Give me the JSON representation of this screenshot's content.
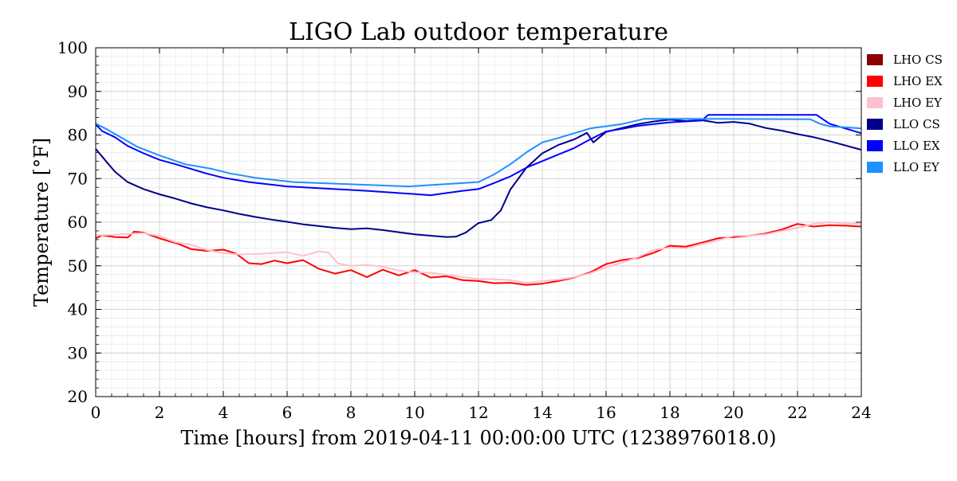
{
  "chart_data": {
    "type": "line",
    "title": "LIGO Lab outdoor temperature",
    "xlabel": "Time [hours] from 2019-04-11 00:00:00 UTC (1238976018.0)",
    "ylabel": "Temperature [°F]",
    "xlim": [
      0,
      24
    ],
    "ylim": [
      20,
      100
    ],
    "x_ticks": [
      "0",
      "2",
      "4",
      "6",
      "8",
      "10",
      "12",
      "14",
      "16",
      "18",
      "20",
      "22",
      "24"
    ],
    "y_ticks": [
      "20",
      "30",
      "40",
      "50",
      "60",
      "70",
      "80",
      "90",
      "100"
    ],
    "grid": true,
    "legend_position": "outside-right",
    "series": [
      {
        "name": "LHO CS",
        "color": "#8b0000",
        "points": []
      },
      {
        "name": "LHO EX",
        "color": "#ff0000",
        "points": [
          [
            0,
            56.3
          ],
          [
            0.2,
            57.0
          ],
          [
            0.6,
            56.6
          ],
          [
            1.0,
            56.5
          ],
          [
            1.2,
            57.8
          ],
          [
            1.5,
            57.6
          ],
          [
            2.0,
            56.3
          ],
          [
            2.6,
            55.0
          ],
          [
            3.0,
            53.8
          ],
          [
            3.5,
            53.4
          ],
          [
            4.0,
            53.7
          ],
          [
            4.4,
            52.8
          ],
          [
            4.8,
            50.6
          ],
          [
            5.2,
            50.4
          ],
          [
            5.6,
            51.2
          ],
          [
            6.0,
            50.6
          ],
          [
            6.5,
            51.3
          ],
          [
            7.0,
            49.3
          ],
          [
            7.5,
            48.2
          ],
          [
            8.0,
            49.0
          ],
          [
            8.5,
            47.4
          ],
          [
            9.0,
            49.1
          ],
          [
            9.5,
            47.8
          ],
          [
            10.0,
            49.0
          ],
          [
            10.5,
            47.3
          ],
          [
            11.0,
            47.6
          ],
          [
            11.5,
            46.7
          ],
          [
            12.0,
            46.5
          ],
          [
            12.5,
            46.0
          ],
          [
            13.0,
            46.1
          ],
          [
            13.5,
            45.6
          ],
          [
            14.0,
            45.9
          ],
          [
            14.5,
            46.5
          ],
          [
            15.0,
            47.3
          ],
          [
            15.5,
            48.5
          ],
          [
            16.0,
            50.4
          ],
          [
            16.5,
            51.3
          ],
          [
            17.0,
            51.8
          ],
          [
            17.5,
            53.0
          ],
          [
            18.0,
            54.6
          ],
          [
            18.5,
            54.4
          ],
          [
            19.0,
            55.3
          ],
          [
            19.5,
            56.3
          ],
          [
            20.0,
            56.6
          ],
          [
            20.5,
            56.9
          ],
          [
            21.0,
            57.4
          ],
          [
            21.5,
            58.3
          ],
          [
            22.0,
            59.6
          ],
          [
            22.5,
            59.0
          ],
          [
            23.0,
            59.3
          ],
          [
            23.5,
            59.2
          ],
          [
            24.0,
            59.0
          ]
        ]
      },
      {
        "name": "LHO EY",
        "color": "#ffc0cb",
        "points": [
          [
            0,
            57.0
          ],
          [
            0.5,
            57.1
          ],
          [
            1.0,
            57.3
          ],
          [
            1.5,
            57.5
          ],
          [
            2.0,
            56.8
          ],
          [
            2.5,
            55.4
          ],
          [
            3.0,
            54.8
          ],
          [
            3.5,
            53.6
          ],
          [
            4.0,
            52.9
          ],
          [
            4.5,
            52.6
          ],
          [
            5.0,
            52.7
          ],
          [
            5.5,
            52.9
          ],
          [
            6.0,
            53.1
          ],
          [
            6.5,
            52.3
          ],
          [
            7.0,
            53.3
          ],
          [
            7.3,
            53.0
          ],
          [
            7.6,
            50.5
          ],
          [
            8.0,
            50.0
          ],
          [
            8.5,
            50.2
          ],
          [
            9.0,
            49.8
          ],
          [
            9.5,
            48.9
          ],
          [
            10.0,
            48.5
          ],
          [
            10.5,
            48.4
          ],
          [
            11.0,
            47.9
          ],
          [
            11.5,
            47.4
          ],
          [
            12.0,
            47.0
          ],
          [
            12.5,
            46.9
          ],
          [
            13.0,
            46.7
          ],
          [
            13.5,
            46.1
          ],
          [
            14.0,
            46.5
          ],
          [
            14.5,
            46.8
          ],
          [
            15.0,
            47.4
          ],
          [
            15.5,
            48.3
          ],
          [
            16.0,
            49.7
          ],
          [
            16.5,
            50.7
          ],
          [
            17.0,
            52.0
          ],
          [
            17.5,
            53.6
          ],
          [
            18.0,
            54.2
          ],
          [
            18.5,
            54.0
          ],
          [
            19.0,
            55.0
          ],
          [
            19.5,
            55.8
          ],
          [
            20.0,
            56.9
          ],
          [
            20.5,
            56.9
          ],
          [
            21.0,
            57.2
          ],
          [
            21.5,
            58.0
          ],
          [
            22.0,
            58.7
          ],
          [
            22.5,
            59.6
          ],
          [
            23.0,
            60.0
          ],
          [
            23.5,
            59.7
          ],
          [
            24.0,
            59.6
          ]
        ]
      },
      {
        "name": "LLO CS",
        "color": "#00008b",
        "points": [
          [
            0,
            76.8
          ],
          [
            0.3,
            74.2
          ],
          [
            0.6,
            71.6
          ],
          [
            1.0,
            69.2
          ],
          [
            1.5,
            67.6
          ],
          [
            2.0,
            66.4
          ],
          [
            2.5,
            65.4
          ],
          [
            3.0,
            64.3
          ],
          [
            3.5,
            63.4
          ],
          [
            4.0,
            62.7
          ],
          [
            4.5,
            61.9
          ],
          [
            5.0,
            61.2
          ],
          [
            5.5,
            60.6
          ],
          [
            6.0,
            60.1
          ],
          [
            6.5,
            59.5
          ],
          [
            7.0,
            59.1
          ],
          [
            7.5,
            58.7
          ],
          [
            8.0,
            58.4
          ],
          [
            8.5,
            58.6
          ],
          [
            9.0,
            58.2
          ],
          [
            9.5,
            57.7
          ],
          [
            10.0,
            57.2
          ],
          [
            10.5,
            56.9
          ],
          [
            11.0,
            56.6
          ],
          [
            11.3,
            56.7
          ],
          [
            11.6,
            57.6
          ],
          [
            12.0,
            59.8
          ],
          [
            12.4,
            60.5
          ],
          [
            12.7,
            62.7
          ],
          [
            13.0,
            67.5
          ],
          [
            13.5,
            72.5
          ],
          [
            14.0,
            75.8
          ],
          [
            14.5,
            77.7
          ],
          [
            15.0,
            79.0
          ],
          [
            15.4,
            80.5
          ],
          [
            15.6,
            78.3
          ],
          [
            16.0,
            80.7
          ],
          [
            16.5,
            81.6
          ],
          [
            17.0,
            82.5
          ],
          [
            17.5,
            83.1
          ],
          [
            18.0,
            83.5
          ],
          [
            18.5,
            83.2
          ],
          [
            19.0,
            83.4
          ],
          [
            19.5,
            82.8
          ],
          [
            20.0,
            83.0
          ],
          [
            20.5,
            82.6
          ],
          [
            21.0,
            81.6
          ],
          [
            21.5,
            81.0
          ],
          [
            22.0,
            80.2
          ],
          [
            22.5,
            79.5
          ],
          [
            23.0,
            78.6
          ],
          [
            23.5,
            77.6
          ],
          [
            24.0,
            76.6
          ]
        ]
      },
      {
        "name": "LLO EX",
        "color": "#0000ff",
        "points": [
          [
            0,
            82.5
          ],
          [
            0.2,
            80.9
          ],
          [
            0.6,
            79.5
          ],
          [
            1.0,
            77.5
          ],
          [
            1.5,
            75.8
          ],
          [
            2.0,
            74.3
          ],
          [
            2.5,
            73.3
          ],
          [
            3.0,
            72.2
          ],
          [
            3.5,
            71.1
          ],
          [
            4.0,
            70.2
          ],
          [
            4.8,
            69.2
          ],
          [
            6.0,
            68.2
          ],
          [
            8.5,
            67.2
          ],
          [
            10.5,
            66.2
          ],
          [
            11.5,
            67.2
          ],
          [
            12.0,
            67.6
          ],
          [
            12.5,
            69.0
          ],
          [
            13.0,
            70.5
          ],
          [
            13.5,
            72.5
          ],
          [
            14.0,
            74.0
          ],
          [
            14.5,
            75.5
          ],
          [
            15.0,
            77.0
          ],
          [
            15.5,
            79.0
          ],
          [
            16.0,
            80.8
          ],
          [
            16.5,
            81.4
          ],
          [
            17.0,
            82.1
          ],
          [
            18.0,
            82.9
          ],
          [
            19.0,
            83.3
          ],
          [
            19.2,
            84.6
          ],
          [
            22.6,
            84.6
          ],
          [
            23.0,
            82.6
          ],
          [
            23.5,
            81.5
          ],
          [
            24.0,
            80.4
          ]
        ]
      },
      {
        "name": "LLO EY",
        "color": "#1e90ff",
        "points": [
          [
            0,
            82.6
          ],
          [
            0.3,
            81.5
          ],
          [
            0.8,
            79.4
          ],
          [
            1.3,
            77.3
          ],
          [
            2.0,
            75.3
          ],
          [
            2.8,
            73.3
          ],
          [
            3.6,
            72.3
          ],
          [
            4.2,
            71.2
          ],
          [
            5.0,
            70.2
          ],
          [
            6.2,
            69.2
          ],
          [
            9.8,
            68.2
          ],
          [
            12.0,
            69.2
          ],
          [
            12.5,
            71.0
          ],
          [
            13.0,
            73.3
          ],
          [
            13.5,
            76.0
          ],
          [
            14.0,
            78.3
          ],
          [
            14.5,
            79.3
          ],
          [
            15.0,
            80.4
          ],
          [
            15.5,
            81.5
          ],
          [
            16.5,
            82.5
          ],
          [
            17.2,
            83.7
          ],
          [
            18.5,
            83.7
          ],
          [
            22.4,
            83.6
          ],
          [
            22.7,
            82.6
          ],
          [
            23.0,
            82.0
          ],
          [
            24.0,
            81.5
          ]
        ]
      }
    ]
  }
}
